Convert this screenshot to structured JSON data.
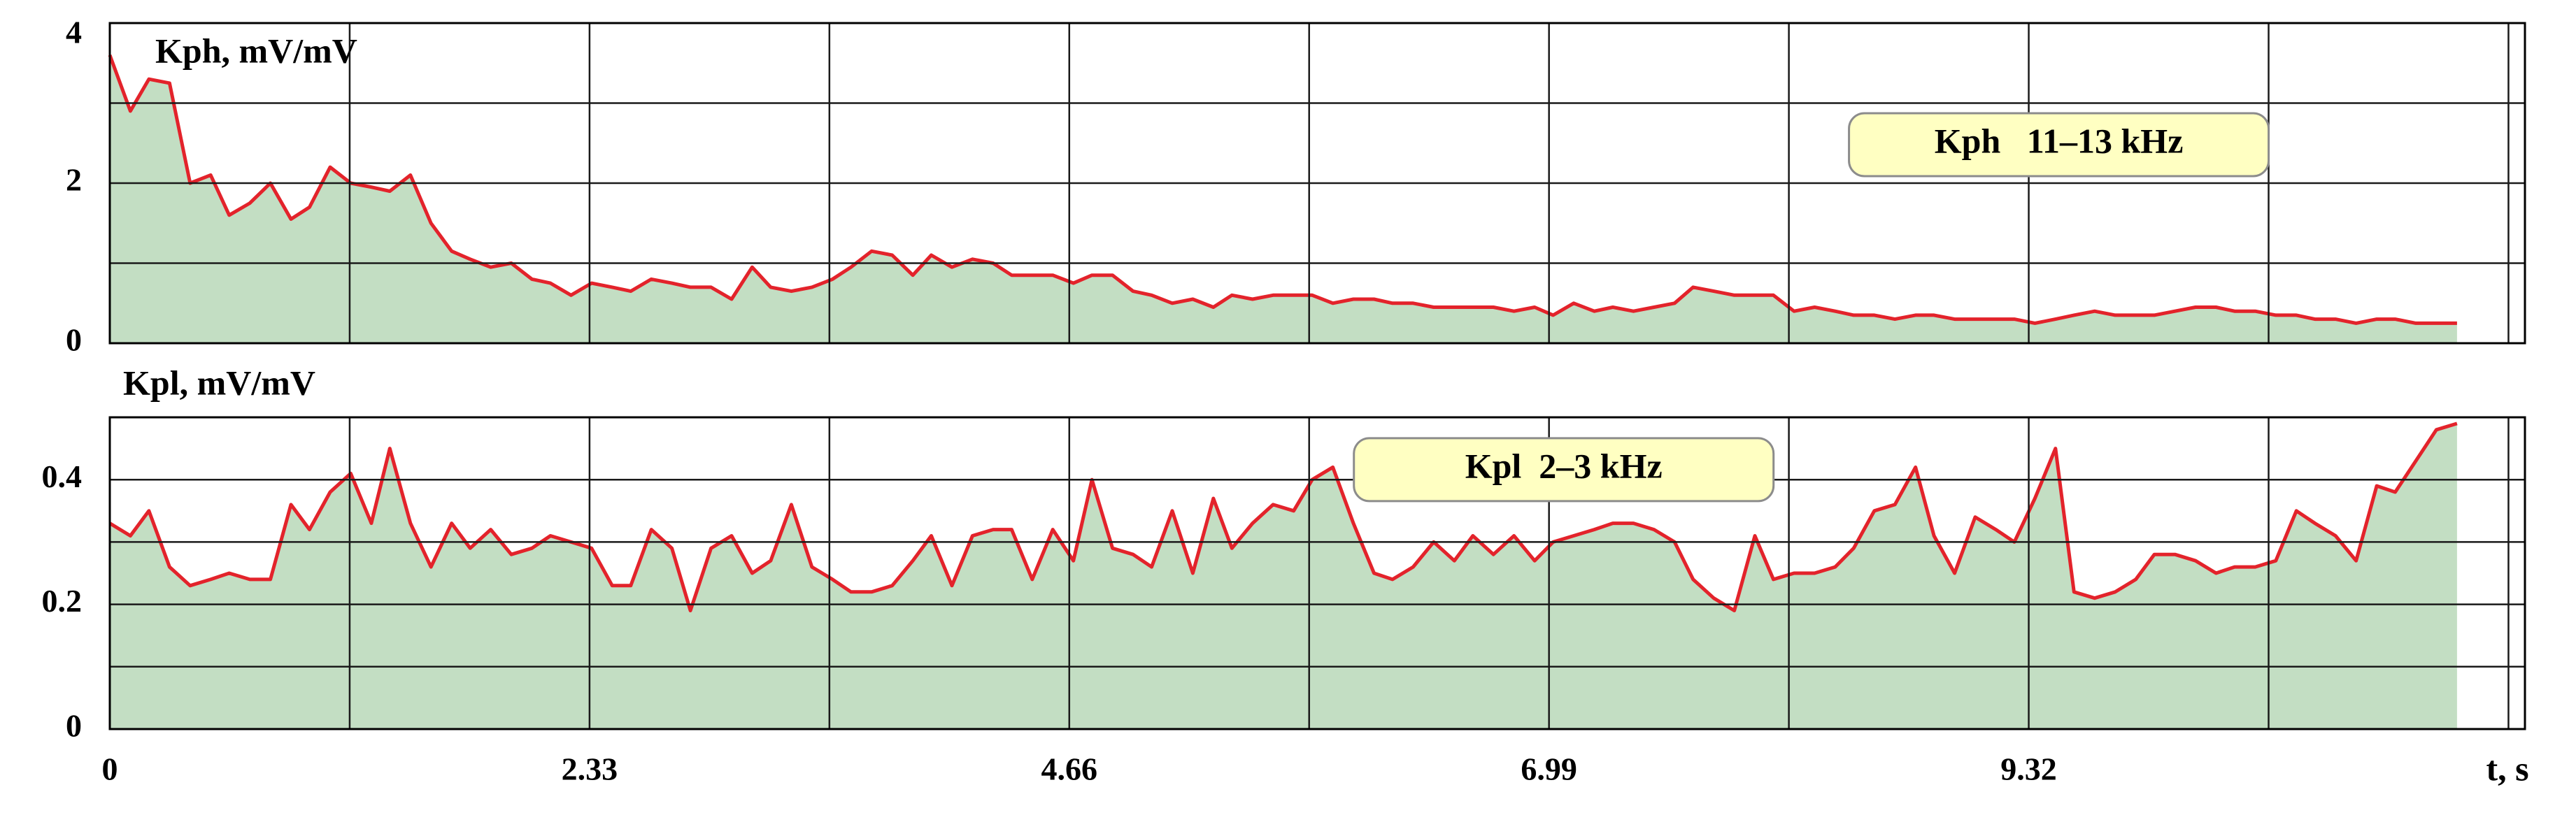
{
  "chart_data": [
    {
      "type": "area-line",
      "ylabel": "Kph, mV/mV",
      "xlim": [
        0,
        11.73
      ],
      "ylim": [
        0,
        4
      ],
      "yticks": [
        0,
        2,
        4
      ],
      "xgrid": [
        0,
        1.165,
        2.33,
        3.495,
        4.66,
        5.825,
        6.99,
        8.155,
        9.32,
        10.485,
        11.65
      ],
      "ygrid": [
        0,
        1,
        2,
        3,
        4
      ],
      "legend": "upper right",
      "x": [
        0,
        0.1,
        0.19,
        0.29,
        0.39,
        0.49,
        0.58,
        0.68,
        0.78,
        0.88,
        0.97,
        1.07,
        1.17,
        1.27,
        1.36,
        1.46,
        1.56,
        1.66,
        1.75,
        1.85,
        1.95,
        2.05,
        2.14,
        2.24,
        2.34,
        2.44,
        2.53,
        2.63,
        2.73,
        2.82,
        2.92,
        3.02,
        3.12,
        3.21,
        3.31,
        3.41,
        3.51,
        3.6,
        3.7,
        3.8,
        3.9,
        3.99,
        4.09,
        4.19,
        4.29,
        4.38,
        4.48,
        4.58,
        4.68,
        4.77,
        4.87,
        4.97,
        5.06,
        5.16,
        5.26,
        5.36,
        5.45,
        5.55,
        5.65,
        5.75,
        5.84,
        5.94,
        6.04,
        6.14,
        6.23,
        6.33,
        6.43,
        6.53,
        6.62,
        6.72,
        6.82,
        6.92,
        7.01,
        7.11,
        7.21,
        7.3,
        7.4,
        7.5,
        7.6,
        7.69,
        7.79,
        7.89,
        7.99,
        8.08,
        8.18,
        8.28,
        8.38,
        8.47,
        8.57,
        8.67,
        8.77,
        8.86,
        8.96,
        9.06,
        9.16,
        9.25,
        9.35,
        9.45,
        9.54,
        9.64,
        9.74,
        9.84,
        9.93,
        10.03,
        10.13,
        10.23,
        10.32,
        10.42,
        10.52,
        10.62,
        10.71,
        10.81,
        10.91,
        11.01,
        11.1,
        11.2,
        11.3,
        11.4
      ],
      "series": [
        {
          "name": "Kph   11–13 kHz",
          "color": "#e3232b",
          "fill": "#c3dec3",
          "values": [
            3.6,
            2.9,
            3.3,
            3.25,
            2.0,
            2.1,
            1.6,
            1.75,
            2.0,
            1.55,
            1.7,
            2.2,
            2.0,
            1.95,
            1.9,
            2.1,
            1.5,
            1.15,
            1.05,
            0.95,
            1.0,
            0.8,
            0.75,
            0.6,
            0.75,
            0.7,
            0.65,
            0.8,
            0.75,
            0.7,
            0.7,
            0.55,
            0.95,
            0.7,
            0.65,
            0.7,
            0.8,
            0.95,
            1.15,
            1.1,
            0.85,
            1.1,
            0.95,
            1.05,
            1.0,
            0.85,
            0.85,
            0.85,
            0.75,
            0.85,
            0.85,
            0.65,
            0.6,
            0.5,
            0.55,
            0.45,
            0.6,
            0.55,
            0.6,
            0.6,
            0.6,
            0.5,
            0.55,
            0.55,
            0.5,
            0.5,
            0.45,
            0.45,
            0.45,
            0.45,
            0.4,
            0.45,
            0.35,
            0.5,
            0.4,
            0.45,
            0.4,
            0.45,
            0.5,
            0.7,
            0.65,
            0.6,
            0.6,
            0.6,
            0.4,
            0.45,
            0.4,
            0.35,
            0.35,
            0.3,
            0.35,
            0.35,
            0.3,
            0.3,
            0.3,
            0.3,
            0.25,
            0.3,
            0.35,
            0.4,
            0.35,
            0.35,
            0.35,
            0.4,
            0.45,
            0.45,
            0.4,
            0.4,
            0.35,
            0.35,
            0.3,
            0.3,
            0.25,
            0.3,
            0.3,
            0.25,
            0.25,
            0.25
          ]
        }
      ]
    },
    {
      "type": "area-line",
      "ylabel": "Kpl, mV/mV",
      "xlabel": "t, s",
      "xlim": [
        0,
        11.73
      ],
      "ylim": [
        0,
        0.5
      ],
      "yticks": [
        0,
        0.2,
        0.4
      ],
      "xticks": [
        0,
        2.33,
        4.66,
        6.99,
        9.32
      ],
      "xgrid": [
        0,
        1.165,
        2.33,
        3.495,
        4.66,
        5.825,
        6.99,
        8.155,
        9.32,
        10.485,
        11.65
      ],
      "ygrid": [
        0,
        0.1,
        0.2,
        0.3,
        0.4,
        0.5
      ],
      "legend": "upper center",
      "x": [
        0,
        0.1,
        0.19,
        0.29,
        0.39,
        0.49,
        0.58,
        0.68,
        0.78,
        0.88,
        0.97,
        1.07,
        1.17,
        1.27,
        1.36,
        1.46,
        1.56,
        1.66,
        1.75,
        1.85,
        1.95,
        2.05,
        2.14,
        2.24,
        2.34,
        2.44,
        2.53,
        2.63,
        2.73,
        2.82,
        2.92,
        3.02,
        3.12,
        3.21,
        3.31,
        3.41,
        3.51,
        3.6,
        3.7,
        3.8,
        3.9,
        3.99,
        4.09,
        4.19,
        4.29,
        4.38,
        4.48,
        4.58,
        4.68,
        4.77,
        4.87,
        4.97,
        5.06,
        5.16,
        5.26,
        5.36,
        5.45,
        5.55,
        5.65,
        5.75,
        5.84,
        5.94,
        6.04,
        6.14,
        6.23,
        6.33,
        6.43,
        6.53,
        6.62,
        6.72,
        6.82,
        6.92,
        7.01,
        7.11,
        7.21,
        7.3,
        7.4,
        7.5,
        7.6,
        7.69,
        7.79,
        7.89,
        7.99,
        8.08,
        8.18,
        8.28,
        8.38,
        8.47,
        8.57,
        8.67,
        8.77,
        8.86,
        8.96,
        9.06,
        9.16,
        9.25,
        9.35,
        9.45,
        9.54,
        9.64,
        9.74,
        9.84,
        9.93,
        10.03,
        10.13,
        10.23,
        10.32,
        10.42,
        10.52,
        10.62,
        10.71,
        10.81,
        10.91,
        11.01,
        11.1,
        11.2,
        11.3,
        11.4
      ],
      "series": [
        {
          "name": "Kpl  2–3 kHz",
          "color": "#e3232b",
          "fill": "#c3dec3",
          "values": [
            0.33,
            0.31,
            0.35,
            0.26,
            0.23,
            0.24,
            0.25,
            0.24,
            0.24,
            0.36,
            0.32,
            0.38,
            0.41,
            0.33,
            0.45,
            0.33,
            0.26,
            0.33,
            0.29,
            0.32,
            0.28,
            0.29,
            0.31,
            0.3,
            0.29,
            0.23,
            0.23,
            0.32,
            0.29,
            0.19,
            0.29,
            0.31,
            0.25,
            0.27,
            0.36,
            0.26,
            0.24,
            0.22,
            0.22,
            0.23,
            0.27,
            0.31,
            0.23,
            0.31,
            0.32,
            0.32,
            0.24,
            0.32,
            0.27,
            0.4,
            0.29,
            0.28,
            0.26,
            0.35,
            0.25,
            0.37,
            0.29,
            0.33,
            0.36,
            0.35,
            0.4,
            0.42,
            0.33,
            0.25,
            0.24,
            0.26,
            0.3,
            0.27,
            0.31,
            0.28,
            0.31,
            0.27,
            0.3,
            0.31,
            0.32,
            0.33,
            0.33,
            0.32,
            0.3,
            0.24,
            0.21,
            0.19,
            0.31,
            0.24,
            0.25,
            0.25,
            0.26,
            0.29,
            0.35,
            0.36,
            0.42,
            0.31,
            0.25,
            0.34,
            0.32,
            0.3,
            0.37,
            0.45,
            0.22,
            0.21,
            0.22,
            0.24,
            0.28,
            0.28,
            0.27,
            0.25,
            0.26,
            0.26,
            0.27,
            0.35,
            0.33,
            0.31,
            0.27,
            0.39,
            0.38,
            0.43,
            0.48,
            0.49
          ]
        }
      ]
    }
  ]
}
